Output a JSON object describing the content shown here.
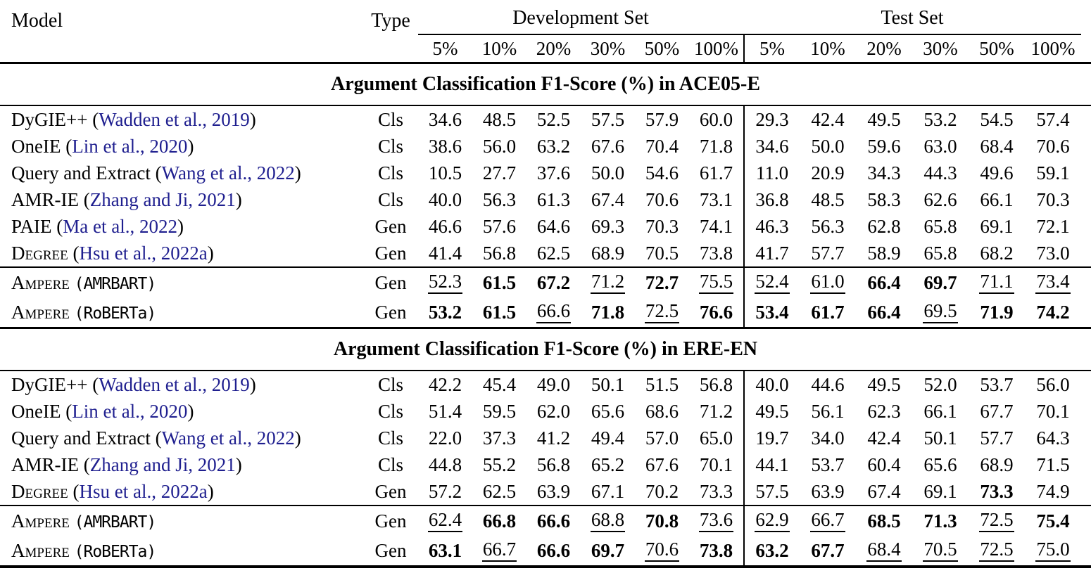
{
  "table": {
    "citation_color": "#1f1f8f",
    "header": {
      "model_label": "Model",
      "type_label": "Type",
      "dev_label": "Development Set",
      "test_label": "Test Set",
      "percent_labels": [
        "5%",
        "10%",
        "20%",
        "30%",
        "50%",
        "100%"
      ]
    },
    "sections": [
      {
        "title": "Argument Classification F1-Score (%) in ACE05-E",
        "rows": [
          {
            "name": "DyGIE++",
            "cite": "Wadden et al., 2019",
            "type": "Cls",
            "dev": [
              "34.6",
              "48.5",
              "52.5",
              "57.5",
              "57.9",
              "60.0"
            ],
            "test": [
              "29.3",
              "42.4",
              "49.5",
              "53.2",
              "54.5",
              "57.4"
            ]
          },
          {
            "name": "OneIE",
            "cite": "Lin et al., 2020",
            "type": "Cls",
            "dev": [
              "38.6",
              "56.0",
              "63.2",
              "67.6",
              "70.4",
              "71.8"
            ],
            "test": [
              "34.6",
              "50.0",
              "59.6",
              "63.0",
              "68.4",
              "70.6"
            ]
          },
          {
            "name": "Query and Extract",
            "cite": "Wang et al., 2022",
            "type": "Cls",
            "dev": [
              "10.5",
              "27.7",
              "37.6",
              "50.0",
              "54.6",
              "61.7"
            ],
            "test": [
              "11.0",
              "20.9",
              "34.3",
              "44.3",
              "49.6",
              "59.1"
            ]
          },
          {
            "name": "AMR-IE",
            "cite": "Zhang and Ji, 2021",
            "type": "Cls",
            "dev": [
              "40.0",
              "56.3",
              "61.3",
              "67.4",
              "70.6",
              "73.1"
            ],
            "test": [
              "36.8",
              "48.5",
              "58.3",
              "62.6",
              "66.1",
              "70.3"
            ]
          },
          {
            "name": "PAIE",
            "cite": "Ma et al., 2022",
            "type": "Gen",
            "dev": [
              "46.6",
              "57.6",
              "64.6",
              "69.3",
              "70.3",
              "74.1"
            ],
            "test": [
              "46.3",
              "56.3",
              "62.8",
              "65.8",
              "69.1",
              "72.1"
            ]
          },
          {
            "name": "Degree",
            "sc": true,
            "cite": "Hsu et al., 2022a",
            "type": "Gen",
            "dev": [
              "41.4",
              "56.8",
              "62.5",
              "68.9",
              "70.5",
              "73.8"
            ],
            "test": [
              "41.7",
              "57.7",
              "58.9",
              "65.8",
              "68.2",
              "73.0"
            ]
          }
        ],
        "ampere_rows": [
          {
            "name": "Ampere",
            "sc": true,
            "variant": "AMRBART",
            "type": "Gen",
            "dev": [
              "52.3",
              "61.5",
              "67.2",
              "71.2",
              "72.7",
              "75.5"
            ],
            "dev_f": [
              "u",
              "b",
              "b",
              "u",
              "b",
              "u"
            ],
            "test": [
              "52.4",
              "61.0",
              "66.4",
              "69.7",
              "71.1",
              "73.4"
            ],
            "test_f": [
              "u",
              "u",
              "b",
              "b",
              "u",
              "u"
            ]
          },
          {
            "name": "Ampere",
            "sc": true,
            "variant": "RoBERTa",
            "type": "Gen",
            "dev": [
              "53.2",
              "61.5",
              "66.6",
              "71.8",
              "72.5",
              "76.6"
            ],
            "dev_f": [
              "b",
              "b",
              "u",
              "b",
              "u",
              "b"
            ],
            "test": [
              "53.4",
              "61.7",
              "66.4",
              "69.5",
              "71.9",
              "74.2"
            ],
            "test_f": [
              "b",
              "b",
              "b",
              "u",
              "b",
              "b"
            ]
          }
        ]
      },
      {
        "title": "Argument Classification F1-Score (%) in ERE-EN",
        "rows": [
          {
            "name": "DyGIE++",
            "cite": "Wadden et al., 2019",
            "type": "Cls",
            "dev": [
              "42.2",
              "45.4",
              "49.0",
              "50.1",
              "51.5",
              "56.8"
            ],
            "test": [
              "40.0",
              "44.6",
              "49.5",
              "52.0",
              "53.7",
              "56.0"
            ]
          },
          {
            "name": "OneIE",
            "cite": "Lin et al., 2020",
            "type": "Cls",
            "dev": [
              "51.4",
              "59.5",
              "62.0",
              "65.6",
              "68.6",
              "71.2"
            ],
            "test": [
              "49.5",
              "56.1",
              "62.3",
              "66.1",
              "67.7",
              "70.1"
            ]
          },
          {
            "name": "Query and Extract",
            "cite": "Wang et al., 2022",
            "type": "Cls",
            "dev": [
              "22.0",
              "37.3",
              "41.2",
              "49.4",
              "57.0",
              "65.0"
            ],
            "test": [
              "19.7",
              "34.0",
              "42.4",
              "50.1",
              "57.7",
              "64.3"
            ]
          },
          {
            "name": "AMR-IE",
            "cite": "Zhang and Ji, 2021",
            "type": "Cls",
            "dev": [
              "44.8",
              "55.2",
              "56.8",
              "65.2",
              "67.6",
              "70.1"
            ],
            "test": [
              "44.1",
              "53.7",
              "60.4",
              "65.6",
              "68.9",
              "71.5"
            ]
          },
          {
            "name": "Degree",
            "sc": true,
            "cite": "Hsu et al., 2022a",
            "type": "Gen",
            "dev": [
              "57.2",
              "62.5",
              "63.9",
              "67.1",
              "70.2",
              "73.3"
            ],
            "test": [
              "57.5",
              "63.9",
              "67.4",
              "69.1",
              "73.3",
              "74.9"
            ],
            "test_f": [
              "",
              "",
              "",
              "",
              "b",
              ""
            ]
          }
        ],
        "ampere_rows": [
          {
            "name": "Ampere",
            "sc": true,
            "variant": "AMRBART",
            "type": "Gen",
            "dev": [
              "62.4",
              "66.8",
              "66.6",
              "68.8",
              "70.8",
              "73.6"
            ],
            "dev_f": [
              "u",
              "b",
              "b",
              "u",
              "b",
              "u"
            ],
            "test": [
              "62.9",
              "66.7",
              "68.5",
              "71.3",
              "72.5",
              "75.4"
            ],
            "test_f": [
              "u",
              "u",
              "b",
              "b",
              "u",
              "b"
            ]
          },
          {
            "name": "Ampere",
            "sc": true,
            "variant": "RoBERTa",
            "type": "Gen",
            "dev": [
              "63.1",
              "66.7",
              "66.6",
              "69.7",
              "70.6",
              "73.8"
            ],
            "dev_f": [
              "b",
              "u",
              "b",
              "b",
              "u",
              "b"
            ],
            "test": [
              "63.2",
              "67.7",
              "68.4",
              "70.5",
              "72.5",
              "75.0"
            ],
            "test_f": [
              "b",
              "b",
              "u",
              "u",
              "u",
              "u"
            ]
          }
        ]
      }
    ]
  }
}
